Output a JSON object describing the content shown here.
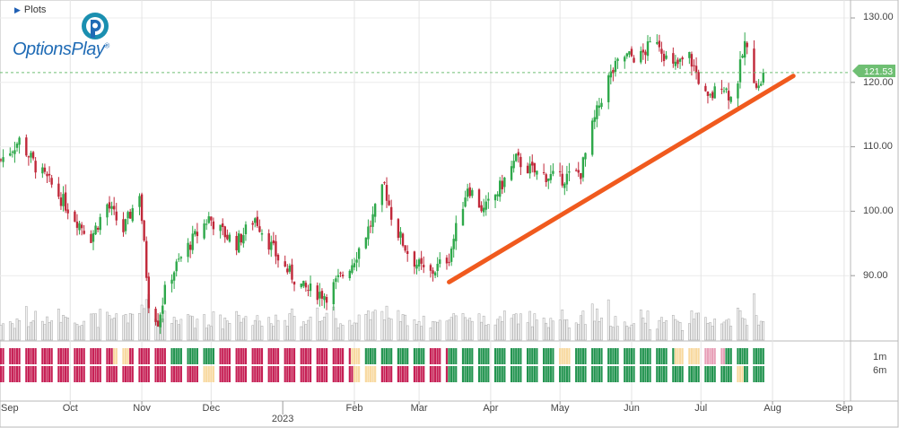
{
  "toolbar": {
    "plots_label": "Plots"
  },
  "logo": {
    "brand": "OptionsPlay",
    "registered": "®"
  },
  "colors": {
    "up": "#2ea84a",
    "down": "#c0283a",
    "trendline": "#f05a1e",
    "current_price_tag": "#6fbf73",
    "rating_bullish": "#239450",
    "rating_bearish": "#c62055",
    "rating_neutral": "#f8d9a0",
    "rating_light_bearish": "#e8a0b8",
    "rating_light_bullish": "#9fd6b0"
  },
  "chart_data": {
    "type": "candlestick",
    "y_axis": {
      "position": "right",
      "ticks": [
        "130.00",
        "120.00",
        "110.00",
        "100.00",
        "90.00"
      ],
      "range": [
        80.5,
        131
      ]
    },
    "current_price": {
      "value": 121.53,
      "label": "121.53"
    },
    "x_axis": {
      "months": [
        {
          "label": "Sep",
          "date": "2022-09-01"
        },
        {
          "label": "Oct",
          "date": "2022-10-01"
        },
        {
          "label": "Nov",
          "date": "2022-11-01"
        },
        {
          "label": "Dec",
          "date": "2022-12-01"
        },
        {
          "label": "Feb",
          "date": "2023-02-01"
        },
        {
          "label": "Mar",
          "date": "2023-03-01"
        },
        {
          "label": "Apr",
          "date": "2023-04-01"
        },
        {
          "label": "May",
          "date": "2023-05-01"
        },
        {
          "label": "Jun",
          "date": "2023-06-01"
        },
        {
          "label": "Jul",
          "date": "2023-07-01"
        },
        {
          "label": "Aug",
          "date": "2023-08-01"
        },
        {
          "label": "Sep",
          "date": "2023-09-01"
        }
      ],
      "year_marker": {
        "label": "2023",
        "date": "2023-01-01"
      }
    },
    "close_path": [
      [
        "2022-09-01",
        108
      ],
      [
        "2022-09-09",
        111
      ],
      [
        "2022-09-16",
        107
      ],
      [
        "2022-09-23",
        104
      ],
      [
        "2022-10-03",
        99
      ],
      [
        "2022-10-10",
        96
      ],
      [
        "2022-10-17",
        101
      ],
      [
        "2022-10-24",
        97
      ],
      [
        "2022-10-31",
        103
      ],
      [
        "2022-11-04",
        86
      ],
      [
        "2022-11-08",
        83
      ],
      [
        "2022-11-12",
        89
      ],
      [
        "2022-11-20",
        94
      ],
      [
        "2022-11-30",
        99
      ],
      [
        "2022-12-05",
        97
      ],
      [
        "2022-12-12",
        95
      ],
      [
        "2022-12-20",
        99
      ],
      [
        "2022-12-31",
        92
      ],
      [
        "2023-01-10",
        88
      ],
      [
        "2023-01-20",
        87
      ],
      [
        "2023-01-31",
        92
      ],
      [
        "2023-02-08",
        98
      ],
      [
        "2023-02-14",
        104
      ],
      [
        "2023-02-18",
        98
      ],
      [
        "2023-02-25",
        93
      ],
      [
        "2023-03-05",
        90
      ],
      [
        "2023-03-14",
        93
      ],
      [
        "2023-03-22",
        104
      ],
      [
        "2023-03-29",
        100
      ],
      [
        "2023-04-04",
        103
      ],
      [
        "2023-04-12",
        108
      ],
      [
        "2023-04-20",
        106
      ],
      [
        "2023-05-01",
        105
      ],
      [
        "2023-05-10",
        106
      ],
      [
        "2023-05-15",
        113
      ],
      [
        "2023-05-21",
        120
      ],
      [
        "2023-05-28",
        124
      ],
      [
        "2023-06-05",
        124
      ],
      [
        "2023-06-12",
        127
      ],
      [
        "2023-06-18",
        122
      ],
      [
        "2023-06-26",
        124
      ],
      [
        "2023-07-04",
        117
      ],
      [
        "2023-07-10",
        120
      ],
      [
        "2023-07-15",
        117
      ],
      [
        "2023-07-20",
        126
      ],
      [
        "2023-07-23",
        122
      ],
      [
        "2023-07-26",
        119
      ],
      [
        "2023-07-28",
        121.5
      ]
    ],
    "trendline": {
      "start": {
        "date": "2023-03-14",
        "value": 89
      },
      "end": {
        "date": "2023-08-10",
        "value": 121
      }
    },
    "ratings": {
      "labels": [
        "1m",
        "6m"
      ],
      "rows": [
        [
          [
            "2022-09-01",
            "2022-10-20",
            "bearish"
          ],
          [
            "2022-10-20",
            "2022-10-27",
            "neutral"
          ],
          [
            "2022-10-27",
            "2022-11-12",
            "bearish"
          ],
          [
            "2022-11-12",
            "2022-12-05",
            "bullish"
          ],
          [
            "2022-12-05",
            "2023-01-31",
            "bearish"
          ],
          [
            "2023-01-31",
            "2023-02-05",
            "neutral"
          ],
          [
            "2023-02-05",
            "2023-03-05",
            "bullish"
          ],
          [
            "2023-03-05",
            "2023-03-14",
            "bearish"
          ],
          [
            "2023-03-14",
            "2023-05-01",
            "bullish"
          ],
          [
            "2023-05-01",
            "2023-05-08",
            "neutral"
          ],
          [
            "2023-05-08",
            "2023-06-20",
            "bullish"
          ],
          [
            "2023-06-20",
            "2023-07-01",
            "neutral"
          ],
          [
            "2023-07-01",
            "2023-07-12",
            "light_bearish"
          ],
          [
            "2023-07-12",
            "2023-07-29",
            "bullish"
          ]
        ],
        [
          [
            "2022-09-01",
            "2022-11-27",
            "bearish"
          ],
          [
            "2022-11-27",
            "2022-12-05",
            "neutral"
          ],
          [
            "2022-12-05",
            "2023-02-01",
            "bearish"
          ],
          [
            "2023-02-01",
            "2023-02-12",
            "neutral"
          ],
          [
            "2023-02-12",
            "2023-03-14",
            "bearish"
          ],
          [
            "2023-03-14",
            "2023-07-15",
            "bullish"
          ],
          [
            "2023-07-15",
            "2023-07-20",
            "neutral"
          ],
          [
            "2023-07-20",
            "2023-07-29",
            "bullish"
          ]
        ]
      ]
    }
  }
}
